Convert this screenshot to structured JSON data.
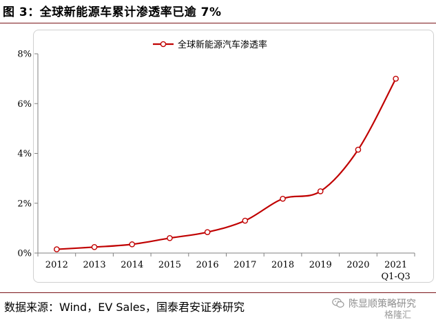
{
  "figure": {
    "title": "图 3：全球新能源车累计渗透率已逾 7%",
    "source": "数据来源：Wind，EV Sales，国泰君安证券研究"
  },
  "watermark": {
    "text": "陈显顺策略研究",
    "sub": "格隆汇",
    "icon": "wechat-icon"
  },
  "colors": {
    "series": "#c00000",
    "axis": "#808080",
    "rule": "#7a1418"
  },
  "chart_data": {
    "type": "line",
    "title": "",
    "xlabel": "",
    "ylabel": "",
    "x": [
      "2012",
      "2013",
      "2014",
      "2015",
      "2016",
      "2017",
      "2018",
      "2019",
      "2020",
      "2021"
    ],
    "x_sublabels": [
      "",
      "",
      "",
      "",
      "",
      "",
      "",
      "",
      "",
      "Q1-Q3"
    ],
    "series": [
      {
        "name": "全球新能源汽车渗透率",
        "values": [
          0.15,
          0.24,
          0.35,
          0.6,
          0.84,
          1.3,
          2.18,
          2.48,
          4.15,
          7.0
        ]
      }
    ],
    "ylim": [
      0,
      8
    ],
    "yticks": [
      0,
      2,
      4,
      6,
      8
    ],
    "ytick_labels": [
      "0%",
      "2%",
      "4%",
      "6%",
      "8%"
    ],
    "legend_position": "top-center",
    "grid": false,
    "marker": "open-circle",
    "smooth": true
  }
}
